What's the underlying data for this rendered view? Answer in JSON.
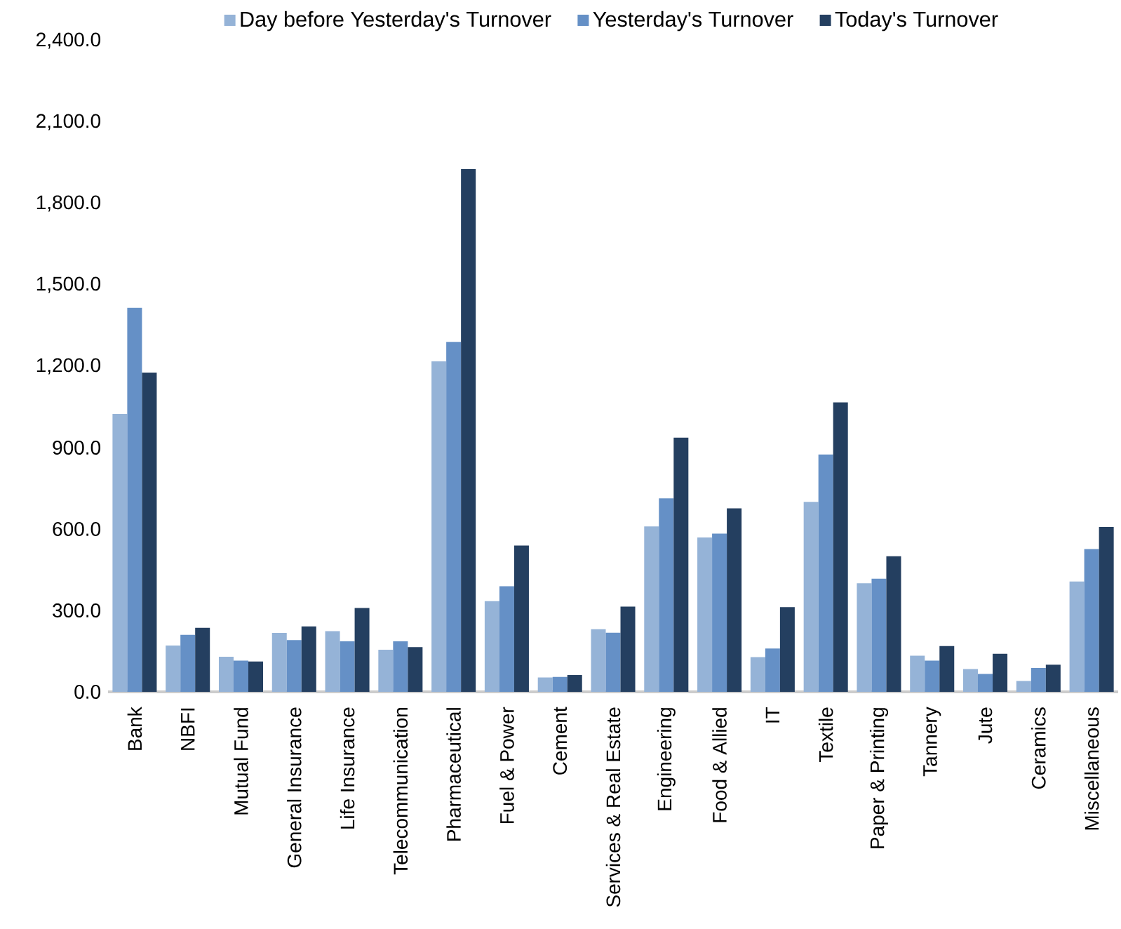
{
  "chart_data": {
    "type": "bar",
    "categories": [
      "Bank",
      "NBFI",
      "Mutual Fund",
      "General Insurance",
      "Life Insurance",
      "Telecommunication",
      "Pharmaceutical",
      "Fuel & Power",
      "Cement",
      "Services & Real Estate",
      "Engineering",
      "Food & Allied",
      "IT",
      "Textile",
      "Paper & Printing",
      "Tannery",
      "Jute",
      "Ceramics",
      "Miscellaneous"
    ],
    "series": [
      {
        "name": "Day before Yesterday's Turnover",
        "color": "#95b3d7",
        "values": [
          1024,
          171,
          129,
          217,
          224,
          155,
          1218,
          334,
          53,
          231,
          610,
          569,
          128,
          700,
          400,
          133,
          84,
          40,
          407
        ]
      },
      {
        "name": "Yesterday's Turnover",
        "color": "#6590c6",
        "values": [
          1415,
          210,
          115,
          191,
          186,
          186,
          1290,
          389,
          55,
          218,
          713,
          583,
          160,
          875,
          417,
          115,
          66,
          88,
          526
        ]
      },
      {
        "name": "Today's Turnover",
        "color": "#243f60",
        "values": [
          1177,
          236,
          112,
          241,
          309,
          165,
          1927,
          539,
          62,
          314,
          937,
          676,
          312,
          1067,
          500,
          169,
          140,
          100,
          608
        ]
      }
    ],
    "ylim": [
      0,
      2400
    ],
    "yticks": [
      {
        "value": 0,
        "label": "0.0"
      },
      {
        "value": 300,
        "label": "300.0"
      },
      {
        "value": 600,
        "label": "600.0"
      },
      {
        "value": 900,
        "label": "900.0"
      },
      {
        "value": 1200,
        "label": "1,200.0"
      },
      {
        "value": 1500,
        "label": "1,500.0"
      },
      {
        "value": 1800,
        "label": "1,800.0"
      },
      {
        "value": 2100,
        "label": "2,100.0"
      },
      {
        "value": 2400,
        "label": "2,400.0"
      }
    ],
    "legend": "top",
    "grid": false
  }
}
